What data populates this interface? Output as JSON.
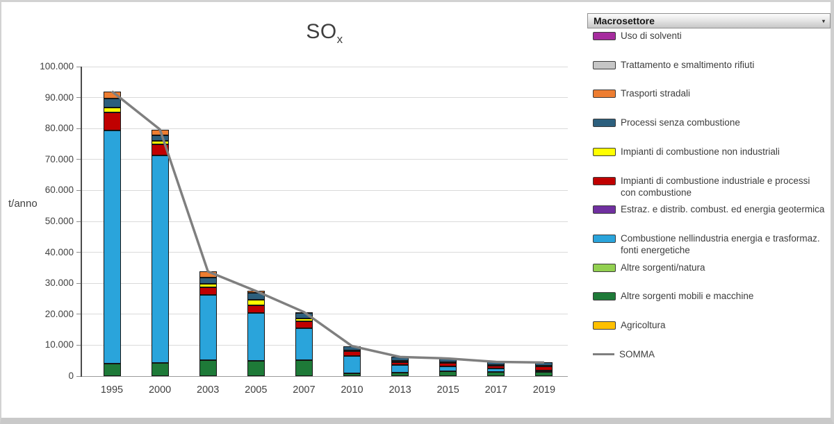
{
  "chart_data": {
    "type": "bar",
    "subtype": "stacked-bars-with-total-line",
    "title_main": "SO",
    "title_sub": "x",
    "ylabel": "t/anno",
    "ylim": [
      0,
      100000
    ],
    "ytick_step": 10000,
    "grid": true,
    "categories": [
      "1995",
      "2000",
      "2003",
      "2005",
      "2007",
      "2010",
      "2013",
      "2015",
      "2017",
      "2019"
    ],
    "series": [
      {
        "name": "Agricoltura",
        "color": "#FFC000",
        "values": [
          0,
          0,
          0,
          0,
          0,
          0,
          0,
          0,
          0,
          0
        ]
      },
      {
        "name": "Altre sorgenti mobili e macchine",
        "color": "#1E7A38",
        "values": [
          4000,
          4300,
          5100,
          4900,
          5100,
          800,
          1100,
          1500,
          1400,
          1300
        ]
      },
      {
        "name": "Altre sorgenti/natura",
        "color": "#92D050",
        "values": [
          0,
          0,
          0,
          0,
          0,
          0,
          0,
          0,
          0,
          0
        ]
      },
      {
        "name": "Combustione nellindustria energia e trasformaz. fonti energetiche",
        "color": "#2AA4DB",
        "values": [
          75300,
          67100,
          21100,
          15600,
          10400,
          5700,
          2400,
          1700,
          1100,
          500
        ]
      },
      {
        "name": "Estraz. e distrib. combust. ed energia geotermica",
        "color": "#7030A0",
        "values": [
          0,
          0,
          0,
          0,
          0,
          0,
          0,
          0,
          0,
          0
        ]
      },
      {
        "name": "Impianti di combustione industriale e processi con combustione",
        "color": "#C00000",
        "values": [
          6000,
          3400,
          2500,
          2300,
          2200,
          1500,
          1000,
          1000,
          900,
          1500
        ]
      },
      {
        "name": "Impianti di combustione non industriali",
        "color": "#FFFF00",
        "values": [
          1500,
          1100,
          1100,
          1900,
          900,
          400,
          400,
          300,
          100,
          100
        ]
      },
      {
        "name": "Processi senza combustione",
        "color": "#2C5F7D",
        "values": [
          2800,
          1900,
          2000,
          2300,
          1900,
          1300,
          1300,
          1200,
          1100,
          1000
        ]
      },
      {
        "name": "Trasporti stradali",
        "color": "#ED7D31",
        "values": [
          2400,
          1900,
          2000,
          500,
          200,
          0,
          0,
          0,
          0,
          0
        ]
      },
      {
        "name": "Trattamento e smaltimento rifiuti",
        "color": "#C6C6C6",
        "values": [
          0,
          0,
          0,
          0,
          0,
          0,
          0,
          0,
          0,
          0
        ]
      },
      {
        "name": "Uso di solventi",
        "color": "#A62C9E",
        "values": [
          0,
          0,
          0,
          0,
          0,
          0,
          0,
          0,
          0,
          0
        ]
      }
    ],
    "line": {
      "name": "SOMMA",
      "color": "#7F7F7F",
      "values": [
        92000,
        79700,
        33800,
        27500,
        20700,
        9700,
        6200,
        5700,
        4600,
        4400
      ]
    },
    "legend_position": "right"
  },
  "legend": {
    "header": "Macrosettore",
    "items": [
      {
        "label": "Uso di solventi",
        "color": "#A62C9E",
        "type": "box"
      },
      {
        "label": "Trattamento e smaltimento rifiuti",
        "color": "#C6C6C6",
        "type": "box"
      },
      {
        "label": "Trasporti stradali",
        "color": "#ED7D31",
        "type": "box"
      },
      {
        "label": "Processi senza combustione",
        "color": "#2C5F7D",
        "type": "box"
      },
      {
        "label": "Impianti di combustione non industriali",
        "color": "#FFFF00",
        "type": "box"
      },
      {
        "label": "Impianti di combustione industriale e processi con combustione",
        "color": "#C00000",
        "type": "box"
      },
      {
        "label": "Estraz. e distrib. combust. ed energia geotermica",
        "color": "#7030A0",
        "type": "box"
      },
      {
        "label": "Combustione nellindustria energia e trasformaz. fonti energetiche",
        "color": "#2AA4DB",
        "type": "box"
      },
      {
        "label": "Altre sorgenti/natura",
        "color": "#92D050",
        "type": "box"
      },
      {
        "label": "Altre sorgenti mobili e macchine",
        "color": "#1E7A38",
        "type": "box"
      },
      {
        "label": "Agricoltura",
        "color": "#FFC000",
        "type": "box"
      },
      {
        "label": "SOMMA",
        "color": "#7F7F7F",
        "type": "line"
      }
    ]
  }
}
